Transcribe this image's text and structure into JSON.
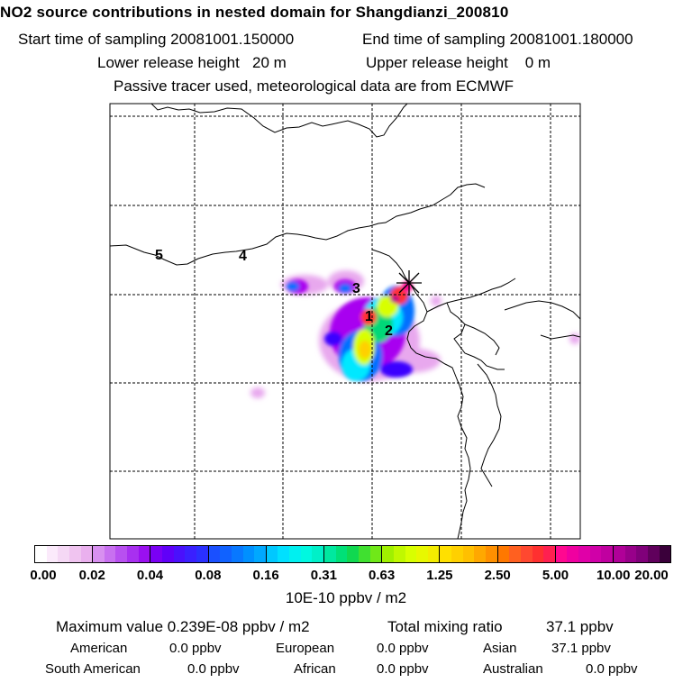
{
  "header": {
    "title": "NO2 source contributions in nested domain for Shangdianzi_200810",
    "start_label": "Start time of sampling 20081001.150000",
    "end_label": "End time of sampling 20081001.180000",
    "lower_label": "Lower release height   20 m",
    "upper_label": "Upper release height    0 m",
    "tracer_label": "Passive tracer used, meteorological data are from ECMWF"
  },
  "map": {
    "markers": [
      "1",
      "2",
      "3",
      "4",
      "5"
    ],
    "colors": {
      "c1": "#ffffff",
      "c2": "#f5d8f5",
      "c3": "#e8a8ee",
      "c4": "#a800f0",
      "c5": "#3a00ff",
      "c6": "#0070ff",
      "c7": "#00e8ff",
      "c8": "#00d878",
      "c9": "#d8ff00",
      "c10": "#ffd000",
      "c11": "#ff3030",
      "c12": "#ff0090",
      "c13": "#b80090",
      "c14": "#3a003a"
    }
  },
  "colorbar": {
    "ticks": [
      "0.00",
      "0.02",
      "0.04",
      "0.08",
      "0.16",
      "0.31",
      "0.63",
      "1.25",
      "2.50",
      "5.00",
      "10.00",
      "20.00"
    ],
    "units": "10E-10 ppbv / m2"
  },
  "stats": {
    "max_label": "Maximum value  0.239E-08 ppbv / m2",
    "total_label": "Total mixing ratio",
    "total_value": "37.1 ppbv"
  },
  "sources": [
    {
      "name": "American",
      "value": "0.0 ppbv"
    },
    {
      "name": "European",
      "value": "0.0 ppbv"
    },
    {
      "name": "Asian",
      "value": "37.1 ppbv"
    },
    {
      "name": "South American",
      "value": "0.0 ppbv"
    },
    {
      "name": "African",
      "value": "0.0 ppbv"
    },
    {
      "name": "Australian",
      "value": "0.0 ppbv"
    }
  ]
}
